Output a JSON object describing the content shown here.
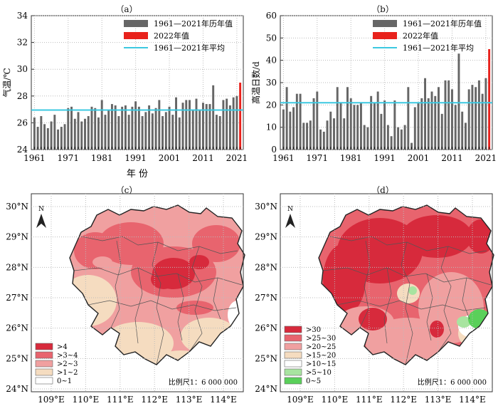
{
  "labels": {
    "a": "（a）",
    "b": "（b）",
    "c": "（c）",
    "d": "（d）"
  },
  "colors": {
    "bar": "#666666",
    "highlight": "#e8221c",
    "avg_line": "#3cc8e0"
  },
  "chart_data": [
    {
      "type": "bar",
      "panel": "a",
      "ylabel": "气温/℃",
      "xlabel": "年 份",
      "ylim": [
        24,
        34
      ],
      "yticks": [
        24,
        26,
        28,
        30,
        32,
        34
      ],
      "xticks": [
        "1961",
        "1971",
        "1981",
        "1991",
        "2001",
        "2011",
        "2021"
      ],
      "legend": [
        "1961—2021年历年值",
        "2022年值",
        "1961—2021年平均"
      ],
      "legend_position": "top-right",
      "x": [
        1961,
        1962,
        1963,
        1964,
        1965,
        1966,
        1967,
        1968,
        1969,
        1970,
        1971,
        1972,
        1973,
        1974,
        1975,
        1976,
        1977,
        1978,
        1979,
        1980,
        1981,
        1982,
        1983,
        1984,
        1985,
        1986,
        1987,
        1988,
        1989,
        1990,
        1991,
        1992,
        1993,
        1994,
        1995,
        1996,
        1997,
        1998,
        1999,
        2000,
        2001,
        2002,
        2003,
        2004,
        2005,
        2006,
        2007,
        2008,
        2009,
        2010,
        2011,
        2012,
        2013,
        2014,
        2015,
        2016,
        2017,
        2018,
        2019,
        2020,
        2021,
        2022
      ],
      "values": [
        26.4,
        25.7,
        26.5,
        25.9,
        25.6,
        26.1,
        26.6,
        25.5,
        25.7,
        25.9,
        27.1,
        27.2,
        26.3,
        26.8,
        26.1,
        26.3,
        26.5,
        27.2,
        27.1,
        26.4,
        27.7,
        26.6,
        26.9,
        27.4,
        27.3,
        26.5,
        27.2,
        27.3,
        26.6,
        27.2,
        27.6,
        27.2,
        26.5,
        26.8,
        27.3,
        26.7,
        27.1,
        27.7,
        26.5,
        26.8,
        27.2,
        26.6,
        27.9,
        26.4,
        27.5,
        27.7,
        27.7,
        26.9,
        27.8,
        27.0,
        27.5,
        27.4,
        27.4,
        28.8,
        26.6,
        26.5,
        27.7,
        27.8,
        27.3,
        27.9,
        28.0,
        29.0
      ],
      "average": 26.95
    },
    {
      "type": "bar",
      "panel": "b",
      "ylabel": "高温日数/d",
      "ylim": [
        0,
        60
      ],
      "yticks": [
        0,
        10,
        20,
        30,
        40,
        50,
        60
      ],
      "xticks": [
        "1961",
        "1971",
        "1981",
        "1991",
        "2001",
        "2011",
        "2021"
      ],
      "legend": [
        "1961—2021年历年值",
        "2022年值",
        "1961—2021年平均"
      ],
      "legend_position": "top-right",
      "x": [
        1961,
        1962,
        1963,
        1964,
        1965,
        1966,
        1967,
        1968,
        1969,
        1970,
        1971,
        1972,
        1973,
        1974,
        1975,
        1976,
        1977,
        1978,
        1979,
        1980,
        1981,
        1982,
        1983,
        1984,
        1985,
        1986,
        1987,
        1988,
        1989,
        1990,
        1991,
        1992,
        1993,
        1994,
        1995,
        1996,
        1997,
        1998,
        1999,
        2000,
        2001,
        2002,
        2003,
        2004,
        2005,
        2006,
        2007,
        2008,
        2009,
        2010,
        2011,
        2012,
        2013,
        2014,
        2015,
        2016,
        2017,
        2018,
        2019,
        2020,
        2021,
        2022
      ],
      "values": [
        18,
        28,
        17,
        19,
        25,
        25,
        12,
        12,
        13,
        23,
        26,
        9,
        8,
        13,
        17,
        14,
        28,
        21,
        14,
        28,
        23,
        20,
        20,
        21,
        11,
        10,
        24,
        21,
        26,
        16,
        22,
        11,
        6,
        22,
        10,
        9,
        11,
        28,
        3,
        19,
        21,
        23,
        32,
        23,
        26,
        24,
        28,
        16,
        31,
        31,
        27,
        20,
        43,
        17,
        12,
        27,
        29,
        28,
        31,
        25,
        32,
        45
      ],
      "average": 21
    },
    {
      "type": "heatmap",
      "panel": "c",
      "legend": [
        ">4",
        ">3~4",
        ">2~3",
        ">1~2",
        "0~1"
      ],
      "colors": [
        "#d72a3c",
        "#e8646e",
        "#f0a0a0",
        "#f5dcc0",
        "#ffffff"
      ],
      "lat_ticks": [
        "24°N",
        "25°N",
        "26°N",
        "27°N",
        "28°N",
        "29°N",
        "30°N"
      ],
      "lon_ticks": [
        "109°E",
        "110°E",
        "111°E",
        "112°E",
        "113°E",
        "114°E"
      ],
      "scale": "比例尺1：6 000 000",
      "north": "N"
    },
    {
      "type": "heatmap",
      "panel": "d",
      "legend": [
        ">30",
        ">25~30",
        ">20~25",
        ">15~20",
        ">10~15",
        ">5~10",
        "0~5"
      ],
      "colors": [
        "#d72a3c",
        "#e8646e",
        "#f0a0a0",
        "#f5dcc0",
        "#ffffff",
        "#a8e4a0",
        "#5ad05a"
      ],
      "lat_ticks": [
        "24°N",
        "25°N",
        "26°N",
        "27°N",
        "28°N",
        "29°N",
        "30°N"
      ],
      "lon_ticks": [
        "109°E",
        "110°E",
        "111°E",
        "112°E",
        "113°E",
        "114°E"
      ],
      "scale": "比例尺1：6 000 000",
      "north": "N"
    }
  ]
}
